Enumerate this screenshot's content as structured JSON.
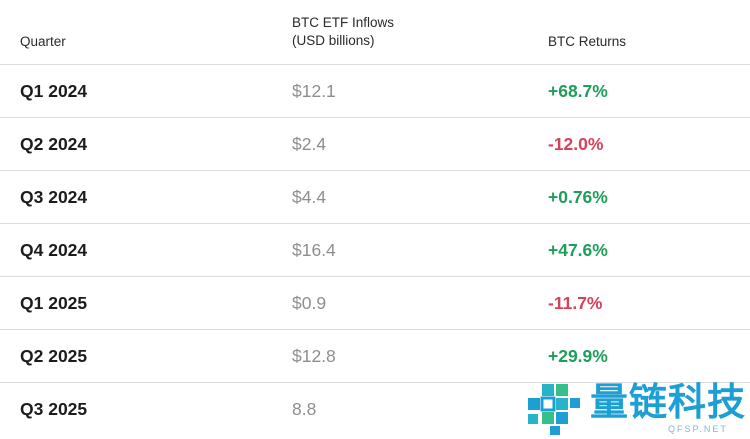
{
  "table": {
    "headers": {
      "quarter": "Quarter",
      "inflows_line1": "BTC ETF Inflows",
      "inflows_line2": "(USD billions)",
      "returns": "BTC Returns"
    },
    "rows": [
      {
        "quarter": "Q1 2024",
        "inflow": "$12.1",
        "return": "+68.7%",
        "sign": "pos"
      },
      {
        "quarter": "Q2 2024",
        "inflow": "$2.4",
        "return": "-12.0%",
        "sign": "neg"
      },
      {
        "quarter": "Q3 2024",
        "inflow": "$4.4",
        "return": "+0.76%",
        "sign": "pos"
      },
      {
        "quarter": "Q4 2024",
        "inflow": "$16.4",
        "return": "+47.6%",
        "sign": "pos"
      },
      {
        "quarter": "Q1 2025",
        "inflow": "$0.9",
        "return": "-11.7%",
        "sign": "neg"
      },
      {
        "quarter": "Q2 2025",
        "inflow": "$12.8",
        "return": "+29.9%",
        "sign": "pos"
      },
      {
        "quarter": "Q3 2025",
        "inflow": "8.8",
        "return": "",
        "sign": "pos"
      }
    ]
  },
  "colors": {
    "positive": "#1f9d5a",
    "negative": "#d7415c",
    "inflow_text": "#8e8e8e",
    "watermark": "#1e9fd4"
  },
  "watermark": {
    "text": "量链科技",
    "subtext": "QFSP.NET",
    "icon": "pixel-logo-icon"
  }
}
